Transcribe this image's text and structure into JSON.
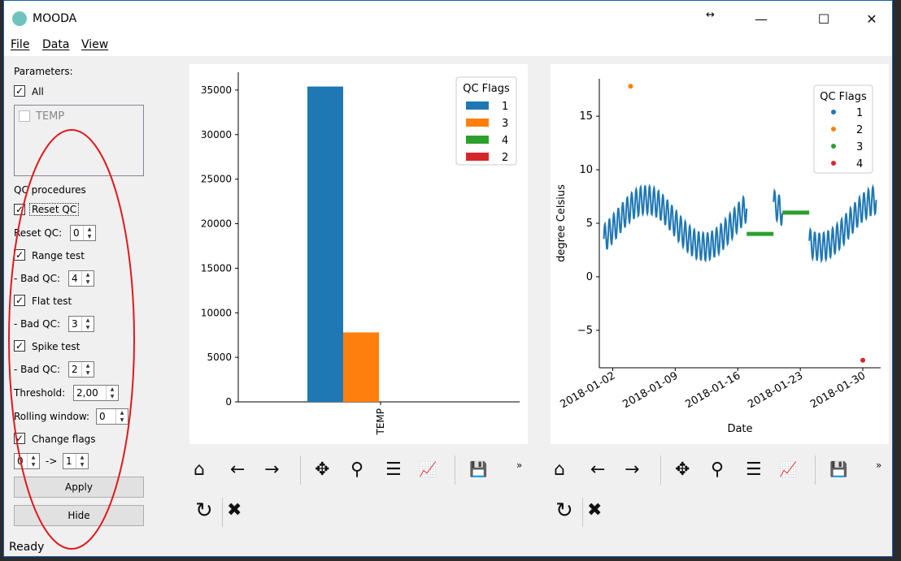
{
  "window": {
    "title": "MOODA",
    "resize_glyph": "↔",
    "minimize": "—",
    "maximize": "☐",
    "close": "✕"
  },
  "menu": {
    "file": "File",
    "data": "Data",
    "view": "View"
  },
  "sidebar": {
    "parameters_label": "Parameters:",
    "all_label": "All",
    "all_checked": "✓",
    "temp_label": "TEMP",
    "qc_procedures_label": "QC procedures",
    "reset_qc_check_label": "Reset QC",
    "reset_qc_label": "Reset QC:",
    "reset_qc_value": "0",
    "range_test_label": "Range test",
    "range_bad_label": "- Bad QC:",
    "range_bad_value": "4",
    "flat_test_label": "Flat test",
    "flat_bad_label": "- Bad QC:",
    "flat_bad_value": "3",
    "spike_test_label": "Spike test",
    "spike_bad_label": "- Bad QC:",
    "spike_bad_value": "2",
    "threshold_label": "Threshold:",
    "threshold_value": "2,00",
    "rolling_label": "Rolling window:",
    "rolling_value": "0",
    "change_flags_label": "Change flags",
    "change_from_value": "0",
    "change_arrow": "->",
    "change_to_value": "1",
    "apply_button": "Apply",
    "hide_button": "Hide",
    "check": "✓",
    "spin_arrows": "▲▼"
  },
  "status": {
    "text": "Ready"
  },
  "toolbar_icons": [
    "home-icon",
    "back-arrow-icon",
    "forward-arrow-icon",
    "pan-icon",
    "zoom-icon",
    "configure-subplots-icon",
    "edit-axis-icon",
    "save-icon",
    "overflow-icon",
    "refresh-icon",
    "close-icon"
  ],
  "toolbar_glyphs": {
    "home": "⌂",
    "back": "←",
    "forward": "→",
    "pan": "✥",
    "zoom": "⚲",
    "configure": "☰",
    "edit": "📈",
    "save": "💾",
    "overflow": "»",
    "refresh": "↻",
    "close": "✖"
  },
  "colors": {
    "qc1": "#1f77b4",
    "qc3": "#ff7f0e",
    "qc4": "#2ca02c",
    "qc2": "#d62728",
    "annotation": "#e0191f"
  },
  "chart_data": [
    {
      "type": "bar",
      "categories": [
        "TEMP"
      ],
      "series": [
        {
          "name": "1",
          "values": [
            35400
          ]
        },
        {
          "name": "3",
          "values": [
            7800
          ]
        },
        {
          "name": "4",
          "values": [
            0
          ]
        },
        {
          "name": "2",
          "values": [
            0
          ]
        }
      ],
      "ylim": [
        0,
        37000
      ],
      "yticks": [
        "0",
        "5000",
        "10000",
        "15000",
        "20000",
        "25000",
        "30000",
        "35000"
      ],
      "legend_title": "QC Flags",
      "legend_labels": [
        "1",
        "3",
        "4",
        "2"
      ],
      "legend_position": "top-right",
      "grid": false
    },
    {
      "type": "scatter",
      "title": "",
      "xlabel": "Date",
      "ylabel": "degree Celsius",
      "xticks": [
        "2018-01-02",
        "2018-01-09",
        "2018-01-16",
        "2018-01-23",
        "2018-01-30"
      ],
      "yticks": [
        "−5",
        "0",
        "5",
        "10",
        "15"
      ],
      "ylim": [
        -8.5,
        18.5
      ],
      "legend_title": "QC Flags",
      "legend_labels": [
        "1",
        "2",
        "3",
        "4"
      ],
      "legend_position": "top-right",
      "grid": false,
      "series": [
        {
          "name": "1",
          "note_values": "oscillating temperature ~2 to ~8 °C across 2018-01-01 to 2018-01-31"
        },
        {
          "name": "2",
          "points": [
            [
              "2018-01-04",
              17.8
            ]
          ]
        },
        {
          "name": "3",
          "segments": [
            [
              [
                "2018-01-17",
                4.0
              ],
              [
                "2018-01-20",
                4.0
              ]
            ],
            [
              [
                "2018-01-21",
                6.0
              ],
              [
                "2018-01-24",
                6.0
              ]
            ]
          ]
        },
        {
          "name": "4",
          "points": [
            [
              "2018-01-30",
              -7.8
            ]
          ]
        }
      ]
    }
  ]
}
